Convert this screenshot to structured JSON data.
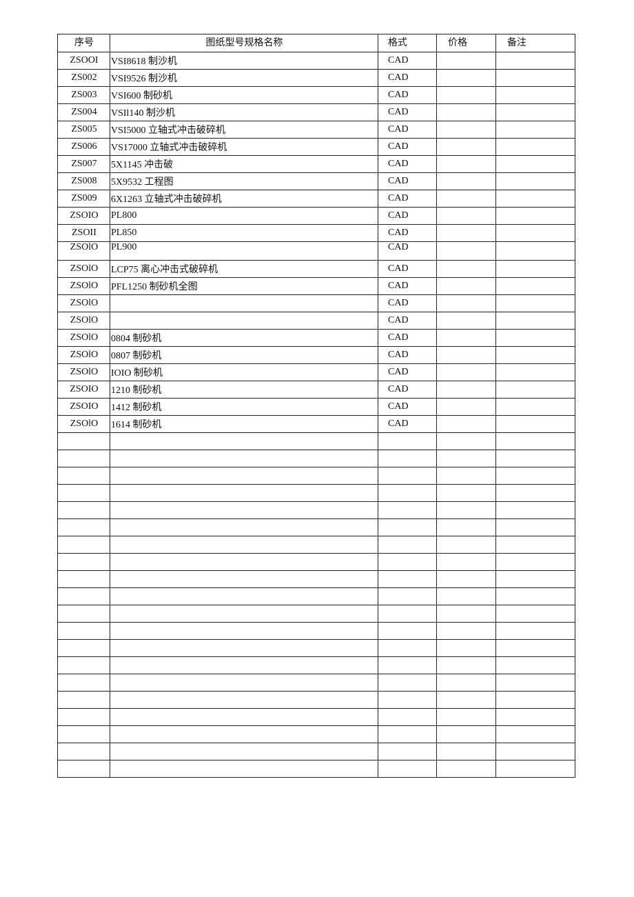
{
  "headers": {
    "no": "序号",
    "name": "图纸型号规格名称",
    "format": "格式",
    "price": "价格",
    "note": "备注"
  },
  "rows": [
    {
      "no": "ZSOOI",
      "name": "VSI8618 制沙机",
      "format": "CAD"
    },
    {
      "no": "ZS002",
      "name": "VSI9526 制沙机",
      "format": "CAD"
    },
    {
      "no": "ZS003",
      "name": "VSI600 制砂机",
      "format": "CAD"
    },
    {
      "no": "ZS004",
      "name": "VSIl140 制沙机",
      "format": "CAD"
    },
    {
      "no": "ZS005",
      "name": "VSI5000 立轴式冲击破碎机",
      "format": "CAD"
    },
    {
      "no": "ZS006",
      "name": "VS17000 立轴式冲击破碎机",
      "format": "CAD"
    },
    {
      "no": "ZS007",
      "name": "5X1145 冲击破",
      "format": "CAD"
    },
    {
      "no": "ZS008",
      "name": "5X9532 工程图",
      "format": "CAD"
    },
    {
      "no": "ZS009",
      "name": "6X1263 立轴式冲击破碎机",
      "format": "CAD"
    },
    {
      "no": "ZSOIO",
      "name": "PL800",
      "format": "CAD"
    },
    {
      "no": "ZSOII",
      "name": "PL850",
      "format": "CAD"
    },
    {
      "no": "ZSOlO",
      "name": "PL900",
      "format": "CAD"
    },
    {
      "no": "ZSOlO",
      "name": "LCP75 离心冲击式破碎机",
      "format": "CAD"
    },
    {
      "no": "ZSOlO",
      "name": "PFL1250 制砂机全图",
      "format": "CAD"
    },
    {
      "no": "ZSOlO",
      "name": "",
      "format": "CAD"
    },
    {
      "no": "ZSOlO",
      "name": "",
      "format": "CAD"
    },
    {
      "no": "ZSOlO",
      "name": "0804 制砂机",
      "format": "CAD"
    },
    {
      "no": "ZSOlO",
      "name": "0807 制砂机",
      "format": "CAD"
    },
    {
      "no": "ZSOlO",
      "name": "IOIO 制砂机",
      "format": "CAD"
    },
    {
      "no": "ZSOIO",
      "name": "1210 制砂机",
      "format": "CAD"
    },
    {
      "no": "ZSOIO",
      "name": "1412 制砂机",
      "format": "CAD"
    },
    {
      "no": "ZSOlO",
      "name": "1614 制砂机",
      "format": "CAD"
    }
  ],
  "empty_row_count": 20
}
